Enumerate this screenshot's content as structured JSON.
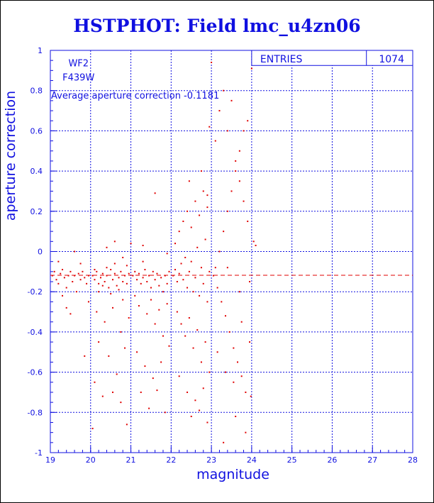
{
  "title": "HSTPHOT: Field lmc_u4zn06",
  "chart_data": {
    "type": "scatter",
    "title": "HSTPHOT: Field lmc_u4zn06",
    "xlabel": "magnitude",
    "ylabel": "aperture correction",
    "xlim": [
      19,
      28
    ],
    "ylim": [
      -1,
      1
    ],
    "x_ticks": [
      "19",
      "20",
      "21",
      "22",
      "23",
      "24",
      "25",
      "26",
      "27",
      "28"
    ],
    "y_ticks": [
      "-1",
      "-0.8",
      "-0.6",
      "-0.4",
      "-0.2",
      "0",
      "0.2",
      "0.4",
      "0.6",
      "0.8",
      "1"
    ],
    "grid": true,
    "annotations": {
      "camera": "WF2",
      "filter": "F439W",
      "average_text": "Average aperture correction -0.1181"
    },
    "stats_box": {
      "label": "ENTRIES",
      "value": "1074"
    },
    "reference_line": {
      "y": -0.1181,
      "style": "dashed"
    },
    "point_count": 1074,
    "point_color": "#e00000",
    "axis_color": "#1010e0",
    "series": [
      {
        "values_xy": [
          [
            19.05,
            -0.12
          ],
          [
            19.1,
            -0.1
          ],
          [
            19.15,
            -0.14
          ],
          [
            19.2,
            -0.16
          ],
          [
            19.25,
            -0.11
          ],
          [
            19.3,
            -0.09
          ],
          [
            19.35,
            -0.13
          ],
          [
            19.4,
            -0.18
          ],
          [
            19.45,
            -0.12
          ],
          [
            19.5,
            -0.1
          ],
          [
            19.55,
            -0.15
          ],
          [
            19.6,
            -0.12
          ],
          [
            19.65,
            -0.2
          ],
          [
            19.7,
            -0.11
          ],
          [
            19.75,
            -0.14
          ],
          [
            19.8,
            -0.1
          ],
          [
            19.85,
            -0.13
          ],
          [
            19.9,
            -0.16
          ],
          [
            19.95,
            -0.12
          ],
          [
            19.4,
            -0.28
          ],
          [
            19.5,
            -0.31
          ],
          [
            19.3,
            -0.22
          ],
          [
            19.2,
            -0.05
          ],
          [
            19.6,
            0.0
          ],
          [
            19.75,
            -0.06
          ],
          [
            19.85,
            -0.52
          ],
          [
            19.95,
            -0.25
          ],
          [
            20.05,
            -0.12
          ],
          [
            20.1,
            -0.14
          ],
          [
            20.15,
            -0.1
          ],
          [
            20.2,
            -0.16
          ],
          [
            20.25,
            -0.13
          ],
          [
            20.3,
            -0.11
          ],
          [
            20.35,
            -0.15
          ],
          [
            20.4,
            -0.12
          ],
          [
            20.45,
            -0.18
          ],
          [
            20.5,
            -0.09
          ],
          [
            20.55,
            -0.14
          ],
          [
            20.6,
            -0.11
          ],
          [
            20.65,
            -0.17
          ],
          [
            20.7,
            -0.13
          ],
          [
            20.75,
            -0.1
          ],
          [
            20.8,
            -0.15
          ],
          [
            20.85,
            -0.12
          ],
          [
            20.9,
            -0.16
          ],
          [
            20.95,
            -0.11
          ],
          [
            20.1,
            -0.09
          ],
          [
            20.2,
            -0.2
          ],
          [
            20.3,
            -0.17
          ],
          [
            20.4,
            -0.08
          ],
          [
            20.5,
            -0.21
          ],
          [
            20.6,
            -0.06
          ],
          [
            20.7,
            -0.19
          ],
          [
            20.8,
            -0.24
          ],
          [
            20.9,
            -0.07
          ],
          [
            20.15,
            -0.3
          ],
          [
            20.35,
            -0.35
          ],
          [
            20.55,
            -0.28
          ],
          [
            20.75,
            -0.4
          ],
          [
            20.95,
            -0.33
          ],
          [
            20.2,
            -0.45
          ],
          [
            20.45,
            -0.52
          ],
          [
            20.65,
            -0.61
          ],
          [
            20.85,
            -0.48
          ],
          [
            20.3,
            -0.72
          ],
          [
            20.55,
            -0.7
          ],
          [
            20.75,
            -0.75
          ],
          [
            20.05,
            -0.88
          ],
          [
            20.9,
            -0.86
          ],
          [
            20.1,
            -0.65
          ],
          [
            20.4,
            0.02
          ],
          [
            20.6,
            0.05
          ],
          [
            20.8,
            -0.03
          ],
          [
            21.0,
            0.04
          ],
          [
            21.05,
            -0.12
          ],
          [
            21.1,
            -0.1
          ],
          [
            21.15,
            -0.14
          ],
          [
            21.2,
            -0.11
          ],
          [
            21.25,
            -0.16
          ],
          [
            21.3,
            -0.13
          ],
          [
            21.35,
            -0.09
          ],
          [
            21.4,
            -0.15
          ],
          [
            21.45,
            -0.12
          ],
          [
            21.5,
            -0.18
          ],
          [
            21.55,
            -0.1
          ],
          [
            21.6,
            -0.14
          ],
          [
            21.65,
            -0.11
          ],
          [
            21.7,
            -0.17
          ],
          [
            21.75,
            -0.13
          ],
          [
            21.8,
            -0.2
          ],
          [
            21.85,
            -0.12
          ],
          [
            21.9,
            -0.16
          ],
          [
            21.95,
            -0.1
          ],
          [
            21.1,
            -0.22
          ],
          [
            21.2,
            -0.27
          ],
          [
            21.3,
            -0.05
          ],
          [
            21.4,
            -0.31
          ],
          [
            21.5,
            -0.24
          ],
          [
            21.6,
            -0.36
          ],
          [
            21.7,
            -0.29
          ],
          [
            21.8,
            -0.42
          ],
          [
            21.9,
            -0.26
          ],
          [
            21.15,
            -0.5
          ],
          [
            21.35,
            -0.57
          ],
          [
            21.55,
            -0.63
          ],
          [
            21.75,
            -0.55
          ],
          [
            21.95,
            -0.47
          ],
          [
            21.25,
            -0.7
          ],
          [
            21.45,
            -0.78
          ],
          [
            21.65,
            -0.69
          ],
          [
            21.85,
            -0.8
          ],
          [
            21.6,
            0.29
          ],
          [
            21.9,
            -0.01
          ],
          [
            21.3,
            0.03
          ],
          [
            22.05,
            -0.12
          ],
          [
            22.1,
            -0.09
          ],
          [
            22.15,
            -0.15
          ],
          [
            22.2,
            -0.11
          ],
          [
            22.25,
            -0.06
          ],
          [
            22.3,
            -0.14
          ],
          [
            22.35,
            -0.03
          ],
          [
            22.4,
            -0.18
          ],
          [
            22.45,
            -0.1
          ],
          [
            22.5,
            -0.05
          ],
          [
            22.55,
            -0.2
          ],
          [
            22.6,
            -0.13
          ],
          [
            22.65,
            0.02
          ],
          [
            22.7,
            -0.22
          ],
          [
            22.75,
            -0.08
          ],
          [
            22.8,
            -0.16
          ],
          [
            22.85,
            0.06
          ],
          [
            22.9,
            -0.25
          ],
          [
            22.95,
            -0.1
          ],
          [
            22.1,
            0.04
          ],
          [
            22.2,
            0.1
          ],
          [
            22.3,
            0.15
          ],
          [
            22.4,
            0.2
          ],
          [
            22.5,
            0.12
          ],
          [
            22.6,
            0.25
          ],
          [
            22.7,
            0.18
          ],
          [
            22.8,
            0.3
          ],
          [
            22.9,
            0.22
          ],
          [
            22.15,
            -0.3
          ],
          [
            22.25,
            -0.36
          ],
          [
            22.35,
            -0.42
          ],
          [
            22.45,
            -0.33
          ],
          [
            22.55,
            -0.48
          ],
          [
            22.65,
            -0.39
          ],
          [
            22.75,
            -0.55
          ],
          [
            22.85,
            -0.45
          ],
          [
            22.95,
            -0.6
          ],
          [
            22.2,
            -0.62
          ],
          [
            22.4,
            -0.7
          ],
          [
            22.6,
            -0.74
          ],
          [
            22.8,
            -0.68
          ],
          [
            22.5,
            -0.82
          ],
          [
            22.7,
            -0.79
          ],
          [
            22.9,
            -0.85
          ],
          [
            22.45,
            0.35
          ],
          [
            22.75,
            0.4
          ],
          [
            22.9,
            0.28
          ],
          [
            23.0,
            0.94
          ],
          [
            22.95,
            0.62
          ],
          [
            23.05,
            -0.12
          ],
          [
            23.1,
            -0.08
          ],
          [
            23.15,
            -0.18
          ],
          [
            23.2,
            0.0
          ],
          [
            23.25,
            -0.25
          ],
          [
            23.3,
            0.1
          ],
          [
            23.35,
            -0.32
          ],
          [
            23.4,
            0.2
          ],
          [
            23.45,
            -0.4
          ],
          [
            23.5,
            0.3
          ],
          [
            23.55,
            -0.48
          ],
          [
            23.6,
            0.4
          ],
          [
            23.65,
            -0.55
          ],
          [
            23.7,
            0.5
          ],
          [
            23.75,
            -0.62
          ],
          [
            23.8,
            0.6
          ],
          [
            23.85,
            -0.7
          ],
          [
            23.9,
            0.65
          ],
          [
            23.95,
            -0.15
          ],
          [
            23.1,
            0.55
          ],
          [
            23.2,
            0.7
          ],
          [
            23.3,
            0.8
          ],
          [
            23.4,
            0.6
          ],
          [
            23.5,
            0.75
          ],
          [
            23.6,
            0.45
          ],
          [
            23.7,
            0.35
          ],
          [
            23.8,
            0.25
          ],
          [
            23.9,
            0.15
          ],
          [
            23.15,
            -0.5
          ],
          [
            23.35,
            -0.6
          ],
          [
            23.55,
            -0.65
          ],
          [
            23.75,
            -0.35
          ],
          [
            23.95,
            -0.45
          ],
          [
            23.3,
            -0.95
          ],
          [
            23.6,
            -0.82
          ],
          [
            23.85,
            -0.9
          ],
          [
            23.4,
            -0.08
          ],
          [
            23.7,
            -0.2
          ],
          [
            24.0,
            0.91
          ],
          [
            23.98,
            -0.72
          ],
          [
            24.05,
            0.05
          ],
          [
            24.1,
            0.03
          ]
        ]
      }
    ]
  }
}
